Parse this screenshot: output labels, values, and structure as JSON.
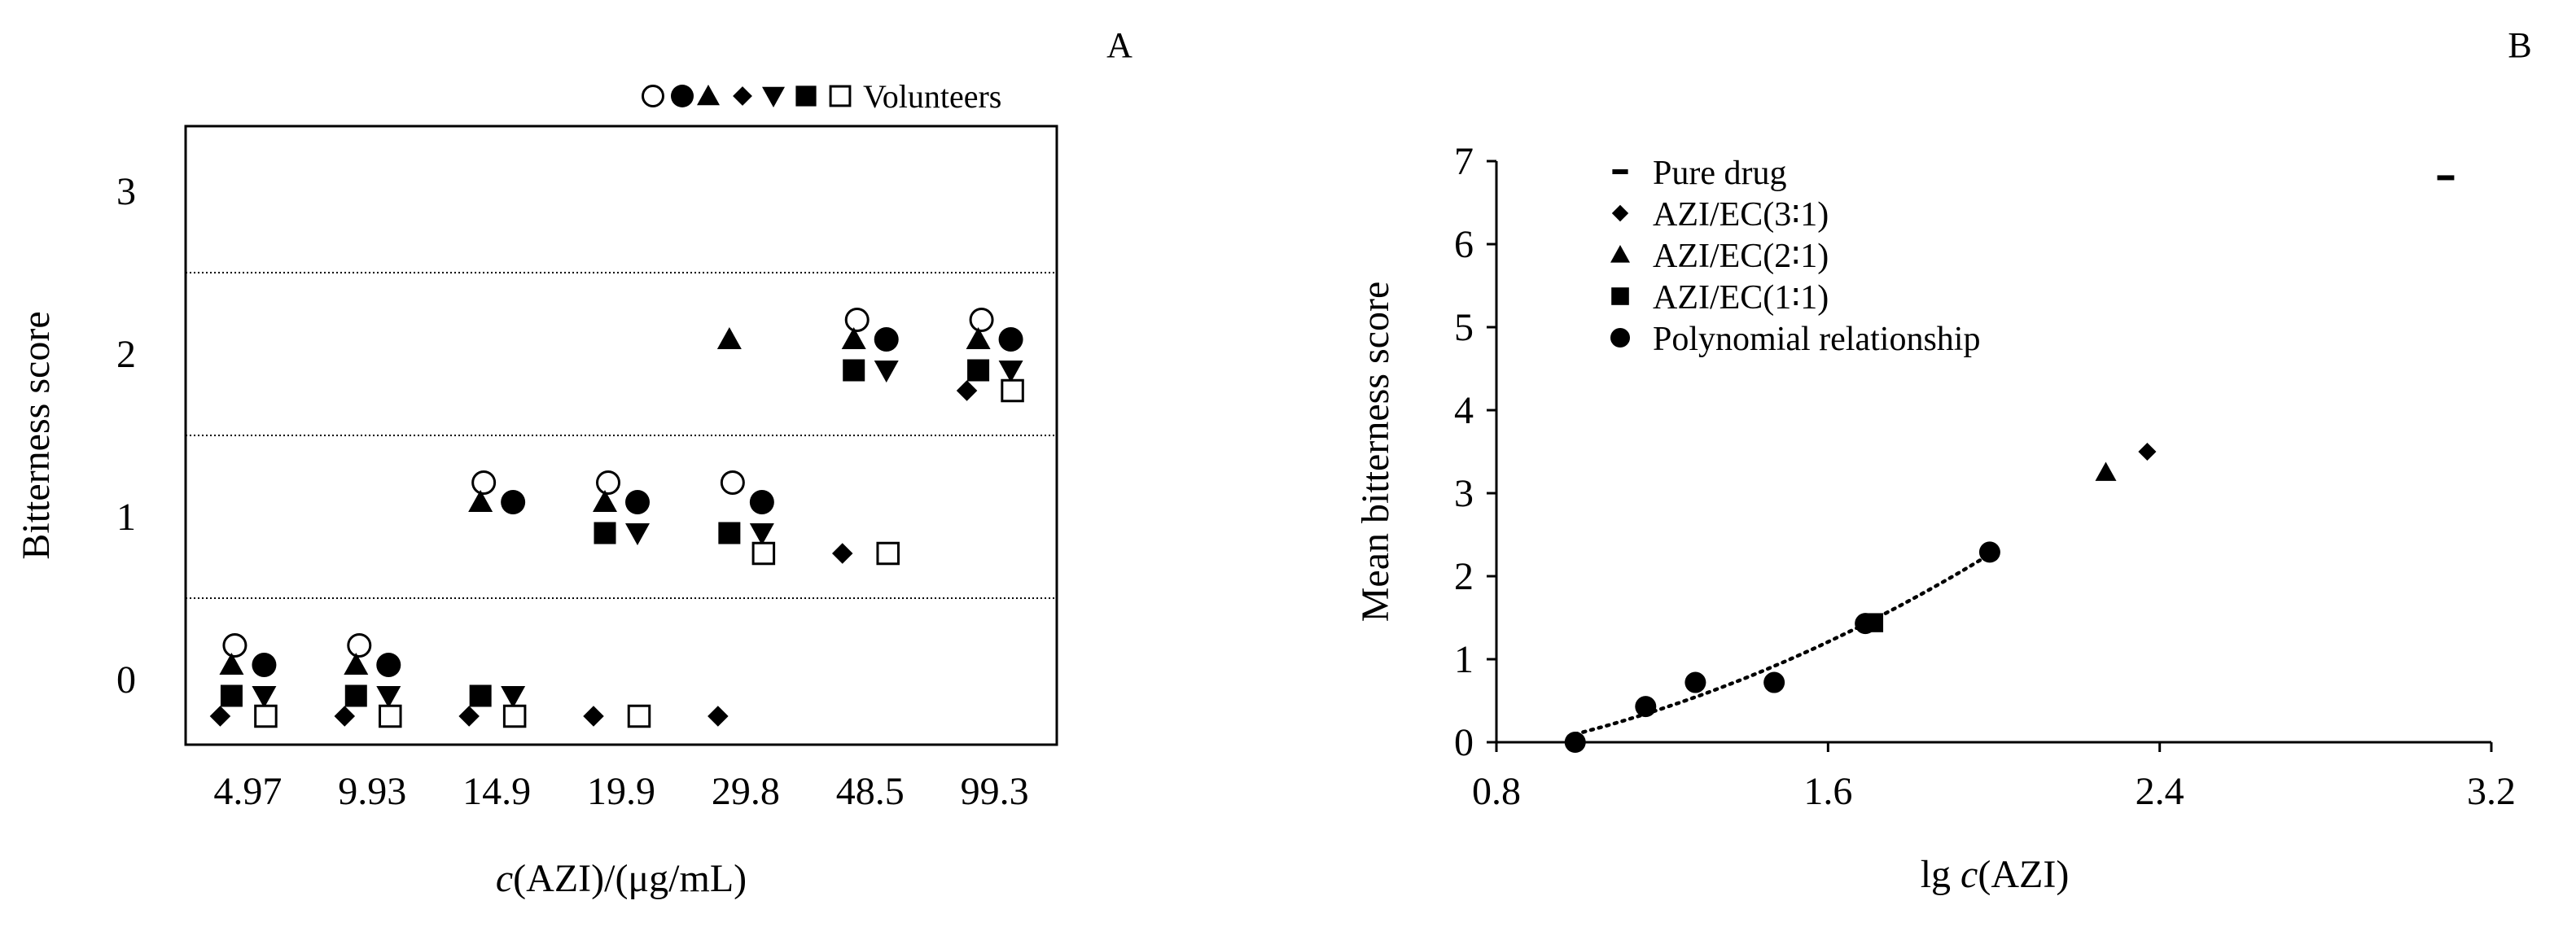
{
  "panels": {
    "a_label": "A",
    "b_label": "B"
  },
  "chart_data": [
    {
      "panel": "A",
      "type": "scatter",
      "ylabel": "Bitterness score",
      "xlabel_italic": "c",
      "xlabel_rest": "(AZI)/(μg/mL)",
      "categories": [
        "4.97",
        "9.93",
        "14.9",
        "19.9",
        "29.8",
        "48.5",
        "99.3"
      ],
      "yticks": [
        "0",
        "1",
        "2",
        "3"
      ],
      "ylim": [
        -0.4,
        3.4
      ],
      "score_bands": [
        0.5,
        1.5,
        2.5
      ],
      "legend": {
        "text": "Volunteers",
        "position": "top-right"
      },
      "volunteers": [
        {
          "marker": "circle-open",
          "scores": [
            0,
            0,
            1,
            1,
            1,
            2,
            2
          ]
        },
        {
          "marker": "circle-filled",
          "scores": [
            0,
            0,
            1,
            1,
            1,
            2,
            2
          ]
        },
        {
          "marker": "triangle-up",
          "scores": [
            0,
            0,
            1,
            1,
            2,
            2,
            2
          ]
        },
        {
          "marker": "diamond",
          "scores": [
            0,
            0,
            0,
            0,
            0,
            1,
            2
          ]
        },
        {
          "marker": "triangle-down",
          "scores": [
            0,
            0,
            0,
            1,
            1,
            2,
            2
          ]
        },
        {
          "marker": "square-filled",
          "scores": [
            0,
            0,
            0,
            1,
            1,
            2,
            2
          ]
        },
        {
          "marker": "square-open",
          "scores": [
            0,
            0,
            0,
            0,
            1,
            1,
            2
          ]
        }
      ]
    },
    {
      "panel": "B",
      "type": "scatter",
      "ylabel": "Mean bitterness score",
      "xlabel_prefix": "lg ",
      "xlabel_italic": "c",
      "xlabel_rest": "(AZI)",
      "xlim": [
        0.8,
        3.2
      ],
      "ylim": [
        0,
        7
      ],
      "xticks": [
        "0.8",
        "1.6",
        "2.4",
        "3.2"
      ],
      "yticks": [
        "0",
        "1",
        "2",
        "3",
        "4",
        "5",
        "6",
        "7"
      ],
      "legend_position": "top-left",
      "series": [
        {
          "name": "Pure drug",
          "marker": "dash",
          "points": [
            [
              3.09,
              6.8
            ]
          ]
        },
        {
          "name": "AZI/EC(3∶1)",
          "marker": "diamond",
          "points": [
            [
              2.37,
              3.5
            ]
          ]
        },
        {
          "name": "AZI/EC(2∶1)",
          "marker": "triangle",
          "points": [
            [
              2.27,
              3.25
            ]
          ]
        },
        {
          "name": "AZI/EC(1∶1)",
          "marker": "square",
          "points": [
            [
              1.71,
              1.44
            ]
          ]
        },
        {
          "name": "Polynomial relationship",
          "marker": "circle",
          "fit": "dotted",
          "points": [
            [
              0.99,
              0.0
            ],
            [
              1.16,
              0.43
            ],
            [
              1.28,
              0.72
            ],
            [
              1.47,
              0.72
            ],
            [
              1.69,
              1.43
            ],
            [
              1.99,
              2.29
            ]
          ]
        }
      ]
    }
  ]
}
